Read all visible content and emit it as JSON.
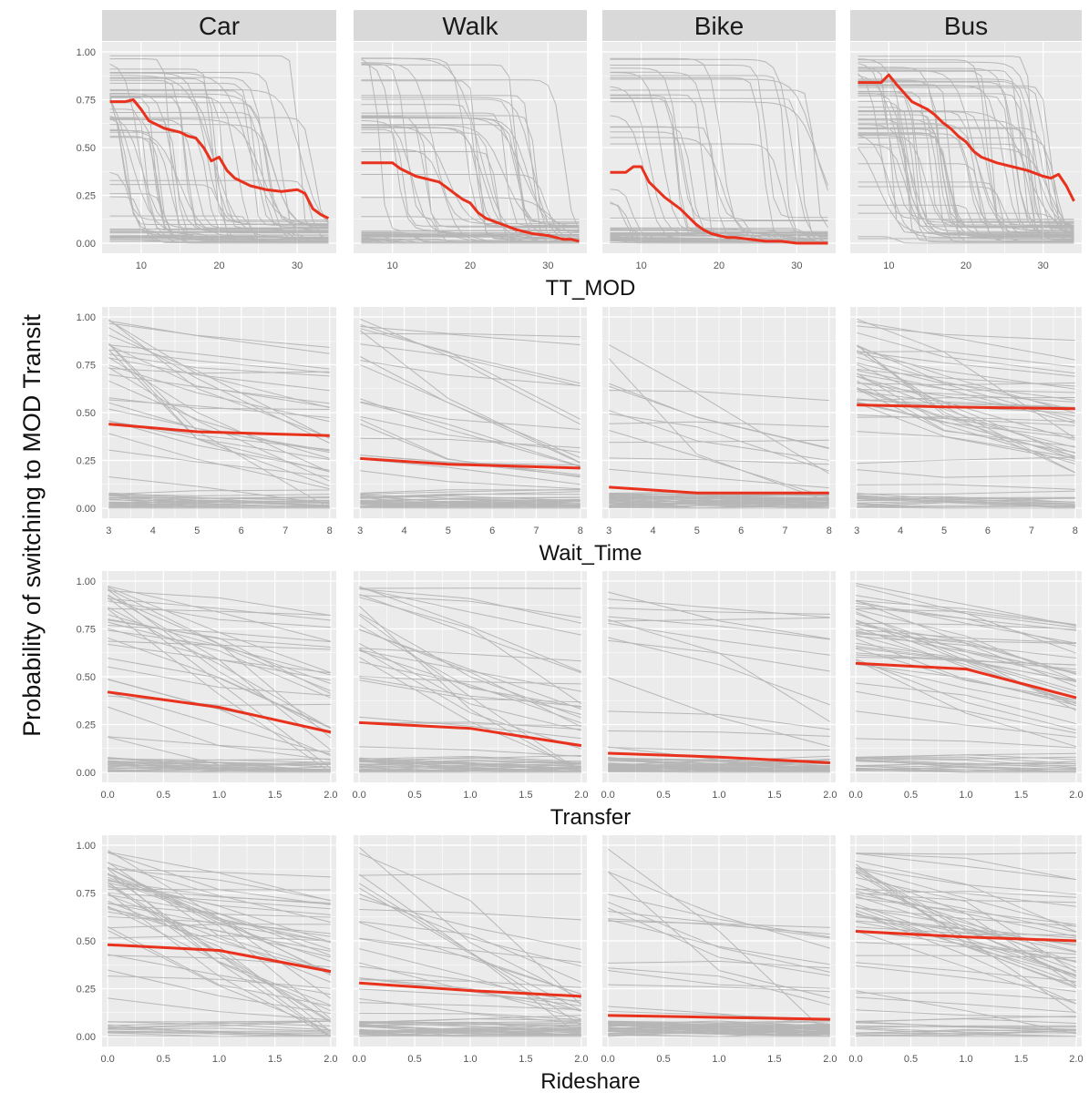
{
  "figure": {
    "ylabel": "Probability of switching to MOD Transit"
  },
  "colors": {
    "panel_bg": "#ebebeb",
    "strip_bg": "#d9d9d9",
    "grid": "#ffffff",
    "ice_line": "#000000",
    "pdp_line": "#e8321e"
  },
  "chart_data": {
    "type": "line",
    "description_kind": "ICE curves (individual, grey) with PDP average (red), faceted by mode (columns) and feature (rows)",
    "columns": [
      "Car",
      "Walk",
      "Bike",
      "Bus"
    ],
    "y_ticks": [
      "0.00",
      "0.25",
      "0.50",
      "0.75",
      "1.00"
    ],
    "ylim": [
      0,
      1
    ],
    "grid": true,
    "rows": [
      {
        "xlabel": "TT_MOD",
        "xlim": [
          5,
          35
        ],
        "x_ticks": [
          10,
          20,
          30
        ],
        "x_tick_labels": [
          "10",
          "20",
          "30"
        ],
        "pdp": {
          "x": [
            6,
            8,
            9,
            10,
            11,
            13,
            15,
            16,
            17,
            18,
            19,
            20,
            21,
            22,
            24,
            26,
            28,
            30,
            31,
            32,
            33,
            34
          ],
          "series": [
            {
              "name": "Car",
              "values": [
                0.74,
                0.74,
                0.75,
                0.7,
                0.64,
                0.6,
                0.58,
                0.56,
                0.55,
                0.5,
                0.43,
                0.45,
                0.38,
                0.34,
                0.3,
                0.28,
                0.27,
                0.28,
                0.26,
                0.18,
                0.15,
                0.13
              ]
            },
            {
              "name": "Walk",
              "values": [
                0.42,
                0.42,
                0.42,
                0.42,
                0.39,
                0.35,
                0.33,
                0.32,
                0.29,
                0.26,
                0.23,
                0.21,
                0.16,
                0.13,
                0.1,
                0.07,
                0.05,
                0.04,
                0.03,
                0.02,
                0.02,
                0.01
              ]
            },
            {
              "name": "Bike",
              "values": [
                0.37,
                0.37,
                0.4,
                0.4,
                0.32,
                0.24,
                0.18,
                0.14,
                0.1,
                0.07,
                0.05,
                0.04,
                0.03,
                0.03,
                0.02,
                0.01,
                0.01,
                0.0,
                0.0,
                0.0,
                0.0,
                0.0
              ]
            },
            {
              "name": "Bus",
              "values": [
                0.84,
                0.84,
                0.84,
                0.88,
                0.83,
                0.74,
                0.7,
                0.67,
                0.63,
                0.6,
                0.56,
                0.53,
                0.48,
                0.45,
                0.42,
                0.4,
                0.38,
                0.35,
                0.34,
                0.36,
                0.3,
                0.22
              ]
            }
          ]
        }
      },
      {
        "xlabel": "Wait_Time",
        "xlim": [
          2.85,
          8.15
        ],
        "x_ticks": [
          3,
          4,
          5,
          6,
          7,
          8
        ],
        "x_tick_labels": [
          "3",
          "4",
          "5",
          "6",
          "7",
          "8"
        ],
        "pdp": {
          "x": [
            3,
            5,
            8
          ],
          "series": [
            {
              "name": "Car",
              "values": [
                0.44,
                0.4,
                0.38
              ]
            },
            {
              "name": "Walk",
              "values": [
                0.26,
                0.23,
                0.21
              ]
            },
            {
              "name": "Bike",
              "values": [
                0.11,
                0.08,
                0.08
              ]
            },
            {
              "name": "Bus",
              "values": [
                0.54,
                0.53,
                0.52
              ]
            }
          ]
        }
      },
      {
        "xlabel": "Transfer",
        "xlim": [
          -0.05,
          2.05
        ],
        "x_ticks": [
          0,
          0.5,
          1,
          1.5,
          2
        ],
        "x_tick_labels": [
          "0.0",
          "0.5",
          "1.0",
          "1.5",
          "2.0"
        ],
        "pdp": {
          "x": [
            0,
            1,
            2
          ],
          "series": [
            {
              "name": "Car",
              "values": [
                0.42,
                0.34,
                0.21
              ]
            },
            {
              "name": "Walk",
              "values": [
                0.26,
                0.23,
                0.14
              ]
            },
            {
              "name": "Bike",
              "values": [
                0.1,
                0.08,
                0.05
              ]
            },
            {
              "name": "Bus",
              "values": [
                0.57,
                0.54,
                0.39
              ]
            }
          ]
        }
      },
      {
        "xlabel": "Rideshare",
        "xlim": [
          -0.05,
          2.05
        ],
        "x_ticks": [
          0,
          0.5,
          1,
          1.5,
          2
        ],
        "x_tick_labels": [
          "0.0",
          "0.5",
          "1.0",
          "1.5",
          "2.0"
        ],
        "pdp": {
          "x": [
            0,
            1,
            2
          ],
          "series": [
            {
              "name": "Car",
              "values": [
                0.48,
                0.45,
                0.34
              ]
            },
            {
              "name": "Walk",
              "values": [
                0.28,
                0.24,
                0.21
              ]
            },
            {
              "name": "Bike",
              "values": [
                0.11,
                0.1,
                0.09
              ]
            },
            {
              "name": "Bus",
              "values": [
                0.55,
                0.52,
                0.5
              ]
            }
          ]
        }
      }
    ]
  }
}
